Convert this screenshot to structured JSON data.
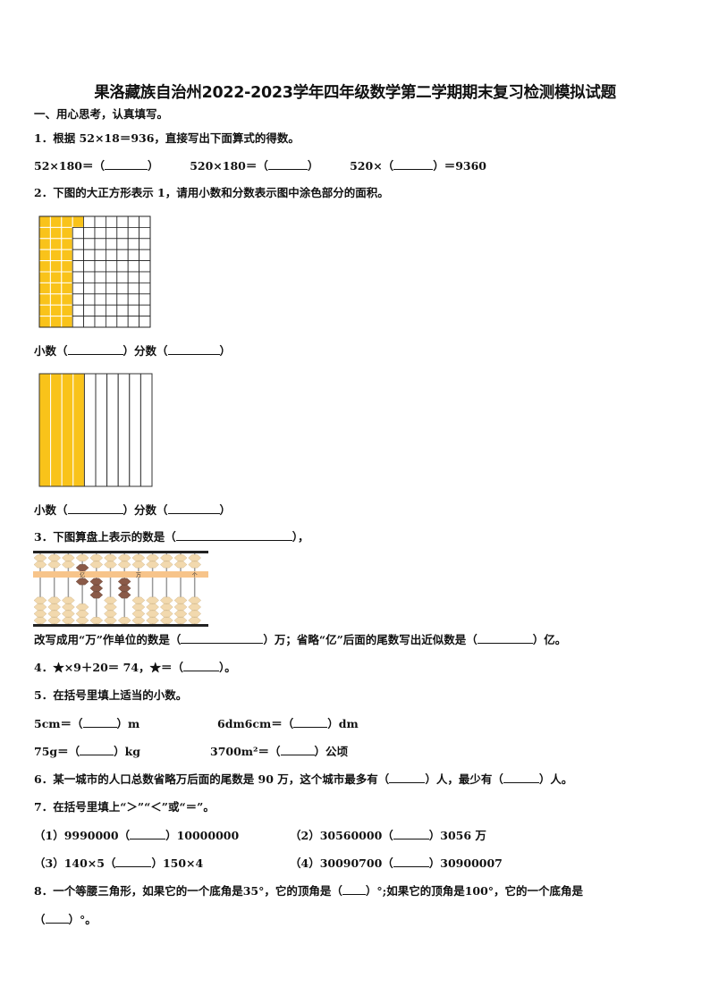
{
  "title": "果洛藏族自治州2022-2023学年四年级数学第二学期期末复习检测模拟试题",
  "section1": "一、用心思考，认真填写。",
  "q1": {
    "stem": "1．根据 52×18＝936，直接写出下面算式的得数。",
    "items": [
      {
        "pre": "52×180＝（",
        "post": "）"
      },
      {
        "pre": "520×180＝（",
        "post": "）"
      },
      {
        "pre": "520×（",
        "post": "）＝9360"
      }
    ]
  },
  "q2": {
    "stem": "2．下图的大正方形表示 1，请用小数和分数表示图中涂色部分的面积。",
    "grid_shaded_cells": 31,
    "grid_total_cells": 100,
    "bars_shaded": 4,
    "bars_total": 10,
    "fill_color": "#F9C31A",
    "answer1": {
      "decimal_label": "小数（",
      "mid": "）分数（",
      "end": "）"
    },
    "answer2": {
      "decimal_label": "小数（",
      "mid": "）分数（",
      "end": "）"
    }
  },
  "q3": {
    "stem_pre": "3．下图算盘上表示的数是（",
    "stem_post": "），",
    "abacus": {
      "rod_values": [
        0,
        0,
        0,
        6,
        3,
        0,
        3,
        0,
        0,
        0,
        0,
        0
      ],
      "labels": [
        "亿",
        "万",
        "个"
      ],
      "beam_color": "#F7C48A",
      "bead_color": "#F2D9AE",
      "active_bead_color": "#8A5A48"
    },
    "line2": {
      "pre": "改写成用“万”作单位的数是（",
      "mid": "）万；省略“亿”后面的尾数写出近似数是（",
      "post": "）亿。"
    }
  },
  "q4": {
    "pre": "4．★×9＋20＝ 74，★＝（",
    "post": "）。"
  },
  "q5": {
    "stem": "5．在括号里填上适当的小数。",
    "items": [
      {
        "pre": "5cm＝（",
        "post": "）m"
      },
      {
        "pre": "6dm6cm＝（",
        "post": "）dm"
      },
      {
        "pre": "75g＝（",
        "post": "）kg"
      },
      {
        "pre": "3700m²＝（",
        "post": "）公顷"
      }
    ]
  },
  "q6": {
    "pre": "6．某一城市的人口总数省略万后面的尾数是 90 万，这个城市最多有（",
    "mid": "）人，最少有（",
    "post": "）人。"
  },
  "q7": {
    "stem": "7．在括号里填上“＞”“＜”或“＝”。",
    "items": [
      {
        "pre": "（1）9990000（",
        "post": "）10000000"
      },
      {
        "pre": "（2）30560000（",
        "post": "）3056 万"
      },
      {
        "pre": "（3）140×5（",
        "post": "）150×4"
      },
      {
        "pre": "（4）30090700（",
        "post": "）30900007"
      }
    ]
  },
  "q8": {
    "pre": "8．一个等腰三角形，如果它的一个底角是35°，它的顶角是（",
    "mid": "）°;如果它的顶角是100°，它的一个底角是",
    "line2_pre": "（",
    "line2_post": "）°。"
  }
}
